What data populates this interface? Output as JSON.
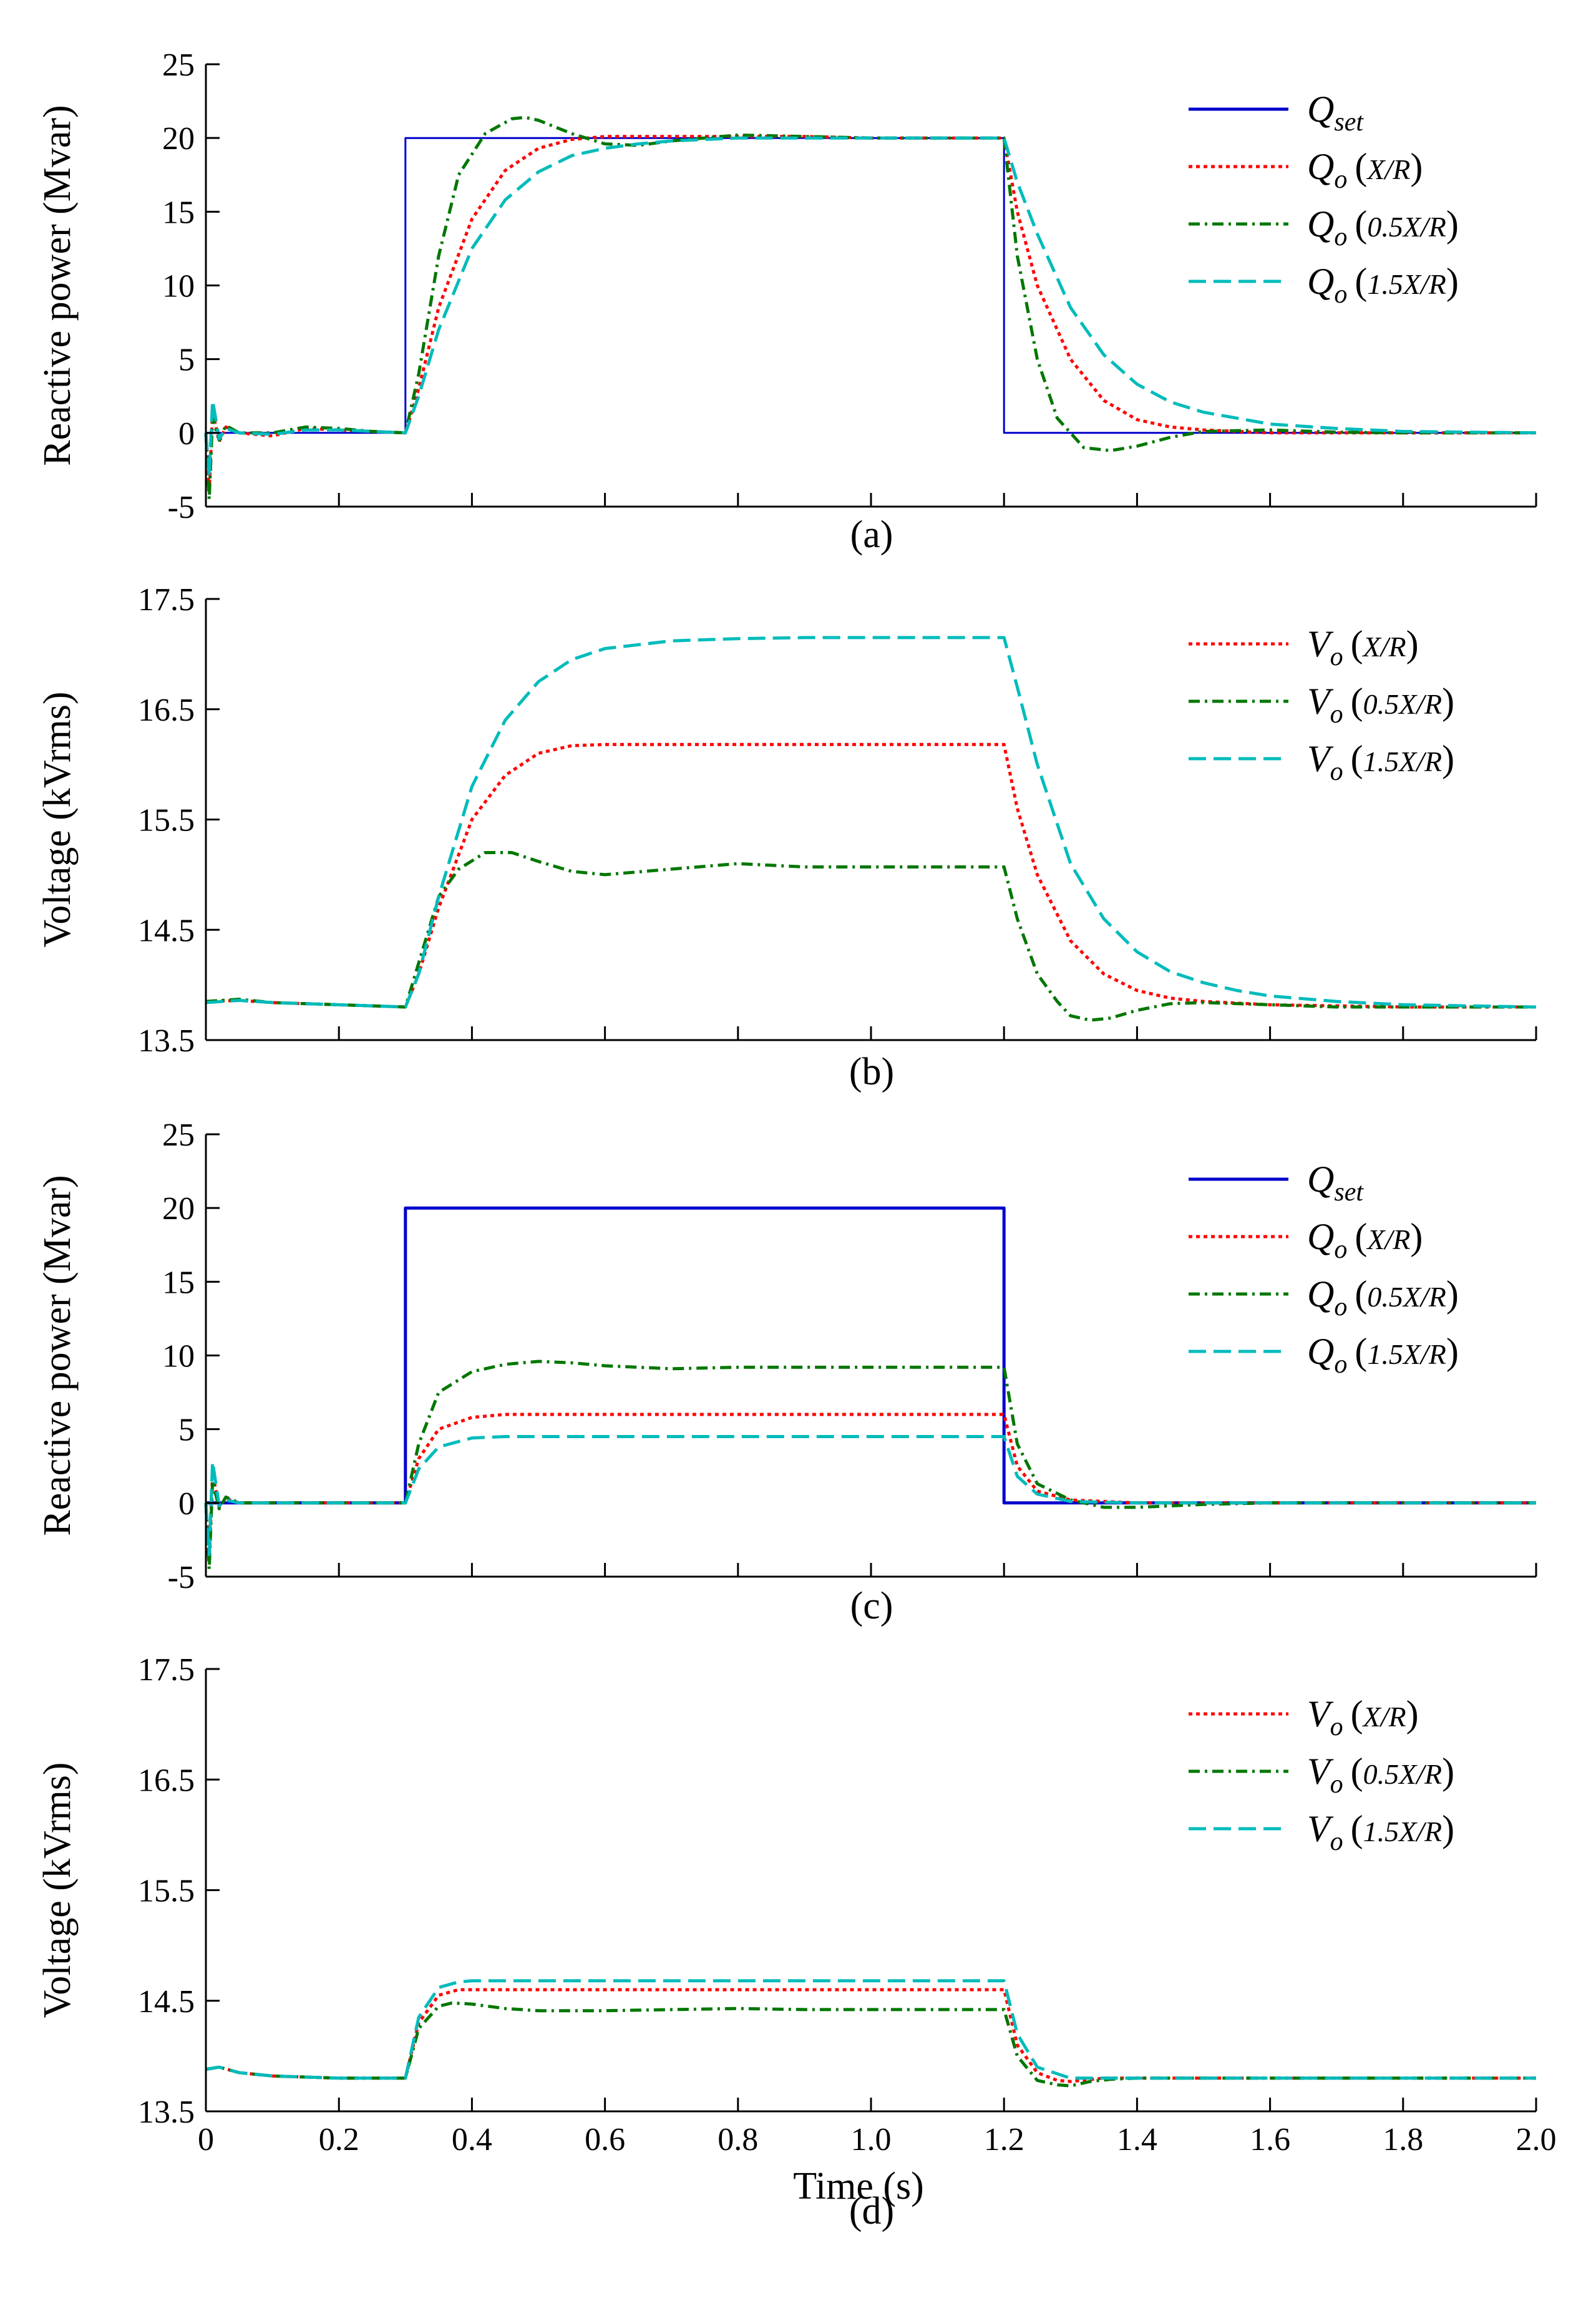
{
  "chart_data": [
    {
      "type": "line",
      "panel": "(a)",
      "ylabel": "Reactive power (Mvar)",
      "xlabel": "",
      "xlim": [
        0,
        2.0
      ],
      "ylim": [
        -5,
        25
      ],
      "yticks": [
        "-5",
        "0",
        "5",
        "10",
        "15",
        "20",
        "25"
      ],
      "xticks": [],
      "legend_position": "top-right",
      "series": [
        {
          "name": "Q_set",
          "legend_base": "Q",
          "legend_sub": "set",
          "legend_arg": "",
          "color": "#0000cc",
          "dash": "solid",
          "x": [
            0,
            0.3,
            0.3,
            1.2,
            1.2,
            2.0
          ],
          "y": [
            0,
            0,
            20,
            20,
            0,
            0
          ]
        },
        {
          "name": "Q_o (X/R)",
          "legend_base": "Q",
          "legend_sub": "o",
          "legend_arg": "X/R",
          "color": "#ff0000",
          "dash": "dotted",
          "x": [
            0,
            0.005,
            0.01,
            0.02,
            0.03,
            0.05,
            0.1,
            0.15,
            0.2,
            0.25,
            0.3,
            0.32,
            0.35,
            0.4,
            0.45,
            0.5,
            0.55,
            0.6,
            0.65,
            0.7,
            0.8,
            0.9,
            1.0,
            1.1,
            1.2,
            1.22,
            1.25,
            1.3,
            1.35,
            1.4,
            1.45,
            1.5,
            1.6,
            1.7,
            1.8,
            1.9,
            2.0
          ],
          "y": [
            0,
            -4,
            1.5,
            -0.6,
            0.4,
            0,
            -0.2,
            0.3,
            0.2,
            0.1,
            0,
            3,
            8.5,
            14.5,
            17.8,
            19.3,
            19.9,
            20.1,
            20.1,
            20.1,
            20.1,
            20.1,
            20.0,
            20.0,
            20.0,
            15,
            10,
            5,
            2.2,
            0.9,
            0.4,
            0.2,
            0,
            0,
            0,
            0,
            0
          ]
        },
        {
          "name": "Q_o (0.5X/R)",
          "legend_base": "Q",
          "legend_sub": "o",
          "legend_arg": "0.5X/R",
          "color": "#007700",
          "dash": "dashdot",
          "x": [
            0,
            0.005,
            0.01,
            0.02,
            0.03,
            0.05,
            0.1,
            0.15,
            0.2,
            0.25,
            0.3,
            0.32,
            0.35,
            0.38,
            0.42,
            0.46,
            0.48,
            0.5,
            0.55,
            0.6,
            0.65,
            0.7,
            0.8,
            0.9,
            1.0,
            1.1,
            1.2,
            1.22,
            1.25,
            1.28,
            1.32,
            1.36,
            1.4,
            1.45,
            1.5,
            1.6,
            1.7,
            1.8,
            1.9,
            2.0
          ],
          "y": [
            0,
            -4.5,
            1,
            -0.5,
            0.5,
            0,
            0,
            0.4,
            0.3,
            0.1,
            0,
            4,
            12,
            17.5,
            20.3,
            21.3,
            21.4,
            21.2,
            20.3,
            19.6,
            19.5,
            19.8,
            20.2,
            20.1,
            20.0,
            20.0,
            20.0,
            12,
            5,
            1,
            -1,
            -1.2,
            -0.9,
            -0.3,
            0.1,
            0.2,
            0.05,
            0,
            0,
            0
          ]
        },
        {
          "name": "Q_o (1.5X/R)",
          "legend_base": "Q",
          "legend_sub": "o",
          "legend_arg": "1.5X/R",
          "color": "#00bbbb",
          "dash": "dashed",
          "x": [
            0,
            0.005,
            0.01,
            0.02,
            0.03,
            0.05,
            0.1,
            0.15,
            0.2,
            0.25,
            0.3,
            0.32,
            0.35,
            0.4,
            0.45,
            0.5,
            0.55,
            0.6,
            0.65,
            0.7,
            0.8,
            0.9,
            1.0,
            1.1,
            1.2,
            1.22,
            1.25,
            1.3,
            1.35,
            1.4,
            1.45,
            1.5,
            1.6,
            1.7,
            1.8,
            1.9,
            2.0
          ],
          "y": [
            0,
            -3,
            2.2,
            -0.4,
            0.3,
            0,
            -0.1,
            0.2,
            0.2,
            0.1,
            0,
            2.5,
            7,
            12.5,
            15.8,
            17.7,
            18.8,
            19.3,
            19.6,
            19.8,
            20.0,
            20.0,
            20.0,
            20.0,
            20.0,
            17,
            13.5,
            8.5,
            5.3,
            3.3,
            2.1,
            1.4,
            0.6,
            0.3,
            0.1,
            0.05,
            0
          ]
        }
      ]
    },
    {
      "type": "line",
      "panel": "(b)",
      "ylabel": "Voltage (kVrms)",
      "xlabel": "",
      "xlim": [
        0,
        2.0
      ],
      "ylim": [
        13.5,
        17.5
      ],
      "yticks": [
        "13.5",
        "14.5",
        "15.5",
        "16.5",
        "17.5"
      ],
      "xticks": [],
      "legend_position": "top-right",
      "series": [
        {
          "name": "V_o (X/R)",
          "legend_base": "V",
          "legend_sub": "o",
          "legend_arg": "X/R",
          "color": "#ff0000",
          "dash": "dotted",
          "x": [
            0,
            0.05,
            0.1,
            0.2,
            0.3,
            0.32,
            0.35,
            0.4,
            0.45,
            0.5,
            0.55,
            0.6,
            0.7,
            0.8,
            0.9,
            1.0,
            1.1,
            1.2,
            1.22,
            1.25,
            1.3,
            1.35,
            1.4,
            1.45,
            1.5,
            1.6,
            1.7,
            1.8,
            1.9,
            2.0
          ],
          "y": [
            13.85,
            13.86,
            13.84,
            13.82,
            13.8,
            14.1,
            14.7,
            15.5,
            15.9,
            16.1,
            16.17,
            16.18,
            16.18,
            16.18,
            16.18,
            16.18,
            16.18,
            16.18,
            15.6,
            15.0,
            14.4,
            14.1,
            13.95,
            13.88,
            13.85,
            13.82,
            13.81,
            13.8,
            13.8,
            13.8
          ]
        },
        {
          "name": "V_o (0.5X/R)",
          "legend_base": "V",
          "legend_sub": "o",
          "legend_arg": "0.5X/R",
          "color": "#007700",
          "dash": "dashdot",
          "x": [
            0,
            0.05,
            0.1,
            0.2,
            0.3,
            0.32,
            0.35,
            0.38,
            0.42,
            0.46,
            0.5,
            0.55,
            0.6,
            0.7,
            0.8,
            0.9,
            1.0,
            1.1,
            1.2,
            1.22,
            1.25,
            1.28,
            1.3,
            1.33,
            1.36,
            1.4,
            1.45,
            1.5,
            1.6,
            1.7,
            1.8,
            1.9,
            2.0
          ],
          "y": [
            13.85,
            13.87,
            13.84,
            13.82,
            13.8,
            14.2,
            14.8,
            15.05,
            15.2,
            15.2,
            15.12,
            15.03,
            15.0,
            15.05,
            15.1,
            15.07,
            15.07,
            15.07,
            15.07,
            14.6,
            14.1,
            13.85,
            13.72,
            13.68,
            13.7,
            13.77,
            13.83,
            13.84,
            13.82,
            13.8,
            13.8,
            13.8,
            13.8
          ]
        },
        {
          "name": "V_o (1.5X/R)",
          "legend_base": "V",
          "legend_sub": "o",
          "legend_arg": "1.5X/R",
          "color": "#00bbbb",
          "dash": "dashed",
          "x": [
            0,
            0.05,
            0.1,
            0.2,
            0.3,
            0.32,
            0.35,
            0.4,
            0.45,
            0.5,
            0.55,
            0.6,
            0.7,
            0.8,
            0.9,
            1.0,
            1.1,
            1.2,
            1.22,
            1.25,
            1.3,
            1.35,
            1.4,
            1.45,
            1.5,
            1.55,
            1.6,
            1.7,
            1.8,
            1.9,
            2.0
          ],
          "y": [
            13.84,
            13.86,
            13.84,
            13.82,
            13.8,
            14.1,
            14.8,
            15.8,
            16.4,
            16.75,
            16.95,
            17.05,
            17.12,
            17.14,
            17.15,
            17.15,
            17.15,
            17.15,
            16.7,
            16.0,
            15.1,
            14.6,
            14.3,
            14.12,
            14.02,
            13.95,
            13.9,
            13.85,
            13.82,
            13.81,
            13.8
          ]
        }
      ]
    },
    {
      "type": "line",
      "panel": "(c)",
      "ylabel": "Reactive power (Mvar)",
      "xlabel": "",
      "xlim": [
        0,
        2.0
      ],
      "ylim": [
        -5,
        25
      ],
      "yticks": [
        "-5",
        "0",
        "5",
        "10",
        "15",
        "20",
        "25"
      ],
      "xticks": [],
      "legend_position": "top-right",
      "series": [
        {
          "name": "Q_set",
          "legend_base": "Q",
          "legend_sub": "set",
          "legend_arg": "",
          "color": "#0000cc",
          "dash": "solid",
          "x": [
            0,
            0.3,
            0.3,
            1.2,
            1.2,
            2.0
          ],
          "y": [
            0,
            0,
            20,
            20,
            0,
            0
          ]
        },
        {
          "name": "Q_o (X/R)",
          "legend_base": "Q",
          "legend_sub": "o",
          "legend_arg": "X/R",
          "color": "#ff0000",
          "dash": "dotted",
          "x": [
            0,
            0.005,
            0.01,
            0.02,
            0.03,
            0.05,
            0.1,
            0.2,
            0.3,
            0.32,
            0.35,
            0.4,
            0.45,
            0.5,
            0.6,
            0.8,
            1.0,
            1.2,
            1.22,
            1.25,
            1.3,
            1.4,
            1.6,
            1.8,
            2.0
          ],
          "y": [
            0,
            -4,
            2,
            -0.3,
            0.3,
            0,
            0,
            0,
            0,
            3.0,
            5.0,
            5.8,
            6.0,
            6.0,
            6.0,
            6.0,
            6.0,
            6.0,
            2.5,
            0.8,
            0.2,
            0,
            0,
            0,
            0
          ]
        },
        {
          "name": "Q_o (0.5X/R)",
          "legend_base": "Q",
          "legend_sub": "o",
          "legend_arg": "0.5X/R",
          "color": "#007700",
          "dash": "dashdot",
          "x": [
            0,
            0.005,
            0.01,
            0.02,
            0.03,
            0.05,
            0.1,
            0.2,
            0.3,
            0.32,
            0.35,
            0.4,
            0.45,
            0.5,
            0.55,
            0.6,
            0.7,
            0.8,
            1.0,
            1.2,
            1.22,
            1.25,
            1.3,
            1.35,
            1.4,
            1.5,
            1.6,
            1.8,
            2.0
          ],
          "y": [
            0,
            -4.5,
            1.5,
            -0.4,
            0.4,
            0,
            0,
            0,
            0,
            4.0,
            7.5,
            8.9,
            9.4,
            9.6,
            9.5,
            9.3,
            9.1,
            9.2,
            9.2,
            9.2,
            4.0,
            1.3,
            0.2,
            -0.3,
            -0.3,
            -0.1,
            0,
            0,
            0
          ]
        },
        {
          "name": "Q_o (1.5X/R)",
          "legend_base": "Q",
          "legend_sub": "o",
          "legend_arg": "1.5X/R",
          "color": "#00bbbb",
          "dash": "dashed",
          "x": [
            0,
            0.005,
            0.01,
            0.02,
            0.03,
            0.05,
            0.1,
            0.2,
            0.3,
            0.32,
            0.35,
            0.4,
            0.45,
            0.5,
            0.6,
            0.8,
            1.0,
            1.2,
            1.22,
            1.25,
            1.3,
            1.4,
            1.6,
            1.8,
            2.0
          ],
          "y": [
            0,
            -3.5,
            2.8,
            -0.2,
            0.2,
            0,
            0,
            0,
            0,
            2.3,
            3.8,
            4.4,
            4.5,
            4.5,
            4.5,
            4.5,
            4.5,
            4.5,
            1.8,
            0.6,
            0.1,
            0,
            0,
            0,
            0
          ]
        }
      ]
    },
    {
      "type": "line",
      "panel": "(d)",
      "ylabel": "Voltage (kVrms)",
      "xlabel": "Time (s)",
      "xlim": [
        0,
        2.0
      ],
      "ylim": [
        13.5,
        17.5
      ],
      "yticks": [
        "13.5",
        "14.5",
        "15.5",
        "16.5",
        "17.5"
      ],
      "xticks": [
        "0",
        "0.2",
        "0.4",
        "0.6",
        "0.8",
        "1.0",
        "1.2",
        "1.4",
        "1.6",
        "1.8",
        "2.0"
      ],
      "legend_position": "top-right",
      "series": [
        {
          "name": "V_o (X/R)",
          "legend_base": "V",
          "legend_sub": "o",
          "legend_arg": "X/R",
          "color": "#ff0000",
          "dash": "dotted",
          "x": [
            0,
            0.02,
            0.05,
            0.1,
            0.2,
            0.3,
            0.32,
            0.35,
            0.38,
            0.4,
            0.5,
            0.7,
            0.9,
            1.1,
            1.2,
            1.22,
            1.25,
            1.28,
            1.3,
            1.35,
            1.4,
            1.6,
            1.8,
            2.0
          ],
          "y": [
            13.88,
            13.9,
            13.85,
            13.82,
            13.8,
            13.8,
            14.3,
            14.55,
            14.6,
            14.6,
            14.6,
            14.6,
            14.6,
            14.6,
            14.6,
            14.1,
            13.85,
            13.78,
            13.77,
            13.8,
            13.8,
            13.8,
            13.8,
            13.8
          ]
        },
        {
          "name": "V_o (0.5X/R)",
          "legend_base": "V",
          "legend_sub": "o",
          "legend_arg": "0.5X/R",
          "color": "#007700",
          "dash": "dashdot",
          "x": [
            0,
            0.02,
            0.05,
            0.1,
            0.2,
            0.3,
            0.32,
            0.35,
            0.37,
            0.4,
            0.45,
            0.5,
            0.6,
            0.7,
            0.8,
            0.9,
            1.0,
            1.1,
            1.2,
            1.22,
            1.25,
            1.28,
            1.3,
            1.33,
            1.36,
            1.4,
            1.6,
            1.8,
            2.0
          ],
          "y": [
            13.88,
            13.9,
            13.85,
            13.82,
            13.8,
            13.8,
            14.25,
            14.45,
            14.48,
            14.47,
            14.43,
            14.41,
            14.41,
            14.42,
            14.43,
            14.42,
            14.42,
            14.42,
            14.42,
            14.0,
            13.78,
            13.74,
            13.73,
            13.77,
            13.79,
            13.8,
            13.8,
            13.8,
            13.8
          ]
        },
        {
          "name": "V_o (1.5X/R)",
          "legend_base": "V",
          "legend_sub": "o",
          "legend_arg": "1.5X/R",
          "color": "#00bbbb",
          "dash": "dashed",
          "x": [
            0,
            0.02,
            0.05,
            0.1,
            0.2,
            0.3,
            0.32,
            0.35,
            0.38,
            0.4,
            0.5,
            0.7,
            0.9,
            1.1,
            1.2,
            1.22,
            1.25,
            1.3,
            1.35,
            1.4,
            1.6,
            1.8,
            2.0
          ],
          "y": [
            13.88,
            13.9,
            13.85,
            13.82,
            13.8,
            13.8,
            14.35,
            14.62,
            14.67,
            14.68,
            14.68,
            14.68,
            14.68,
            14.68,
            14.68,
            14.2,
            13.9,
            13.8,
            13.8,
            13.8,
            13.8,
            13.8,
            13.8
          ]
        }
      ]
    }
  ]
}
